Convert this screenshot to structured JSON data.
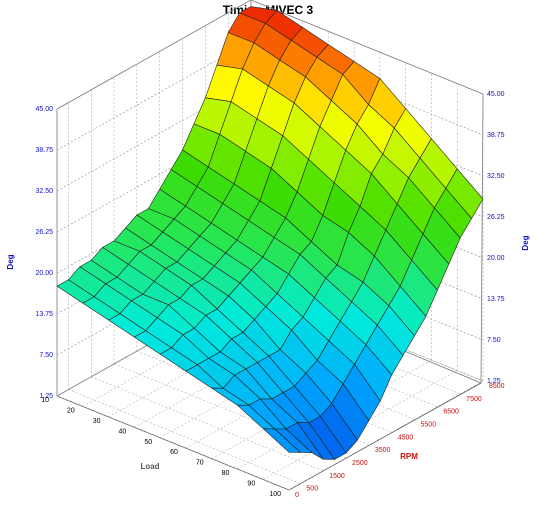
{
  "chart_data": {
    "type": "surface",
    "title": "Timing MIVEC 3",
    "z_label": "Deg",
    "z_ticks": [
      "1.25",
      "7.50",
      "13.75",
      "20.00",
      "26.25",
      "32.50",
      "38.75",
      "45.00"
    ],
    "z_range": [
      1.25,
      45
    ],
    "x_label": "Load",
    "x_ticks": [
      "10",
      "20",
      "30",
      "40",
      "50",
      "60",
      "70",
      "80",
      "90",
      "100"
    ],
    "y_label": "RPM",
    "y_ticks": [
      "0",
      "500",
      "1500",
      "2500",
      "3500",
      "4500",
      "5500",
      "6500",
      "7500",
      "8500"
    ],
    "load": [
      10,
      20,
      30,
      40,
      50,
      60,
      70,
      80,
      90,
      100
    ],
    "rpm": [
      0,
      500,
      1000,
      1500,
      2000,
      2500,
      3000,
      3500,
      4000,
      4500,
      5000,
      5500,
      6000,
      6500,
      7000,
      7500,
      8000,
      8500
    ],
    "values": [
      [
        18,
        17,
        16,
        15,
        14,
        13,
        12,
        11,
        9,
        7
      ],
      [
        18,
        17,
        16,
        15,
        14,
        13,
        11,
        10,
        8,
        6
      ],
      [
        19,
        18,
        17,
        16,
        15,
        13,
        12,
        10,
        7,
        5
      ],
      [
        19,
        18,
        17,
        17,
        15,
        13,
        12,
        9,
        7,
        3
      ],
      [
        20,
        19,
        18,
        17,
        16,
        14,
        12,
        9,
        6,
        2
      ],
      [
        20,
        20,
        19,
        18,
        16,
        14,
        12,
        9,
        6,
        2
      ],
      [
        21,
        20,
        19,
        18,
        17,
        15,
        12,
        10,
        7,
        3
      ],
      [
        22,
        21,
        20,
        19,
        18,
        16,
        14,
        11,
        9,
        5
      ],
      [
        22,
        22,
        21,
        20,
        19,
        17,
        15,
        13,
        11,
        7
      ],
      [
        24,
        23,
        22,
        21,
        20,
        19,
        17,
        15,
        13,
        10
      ],
      [
        26,
        25,
        24,
        23,
        22,
        21,
        19,
        17,
        15,
        12
      ],
      [
        28,
        27,
        26,
        25,
        24,
        22,
        20,
        19,
        17,
        14
      ],
      [
        31,
        31,
        30,
        29,
        27,
        25,
        24,
        22,
        19,
        16
      ],
      [
        34,
        35,
        34,
        33,
        31,
        29,
        27,
        25,
        22,
        19
      ],
      [
        38,
        39,
        38,
        37,
        35,
        33,
        31,
        28,
        25,
        22
      ],
      [
        42,
        42,
        41,
        40,
        38,
        36,
        33,
        31,
        28,
        25
      ],
      [
        44,
        44,
        43,
        42,
        41,
        38,
        36,
        33,
        30,
        27
      ],
      [
        44,
        45,
        44,
        43,
        42,
        41,
        38,
        35,
        32,
        29
      ]
    ]
  }
}
